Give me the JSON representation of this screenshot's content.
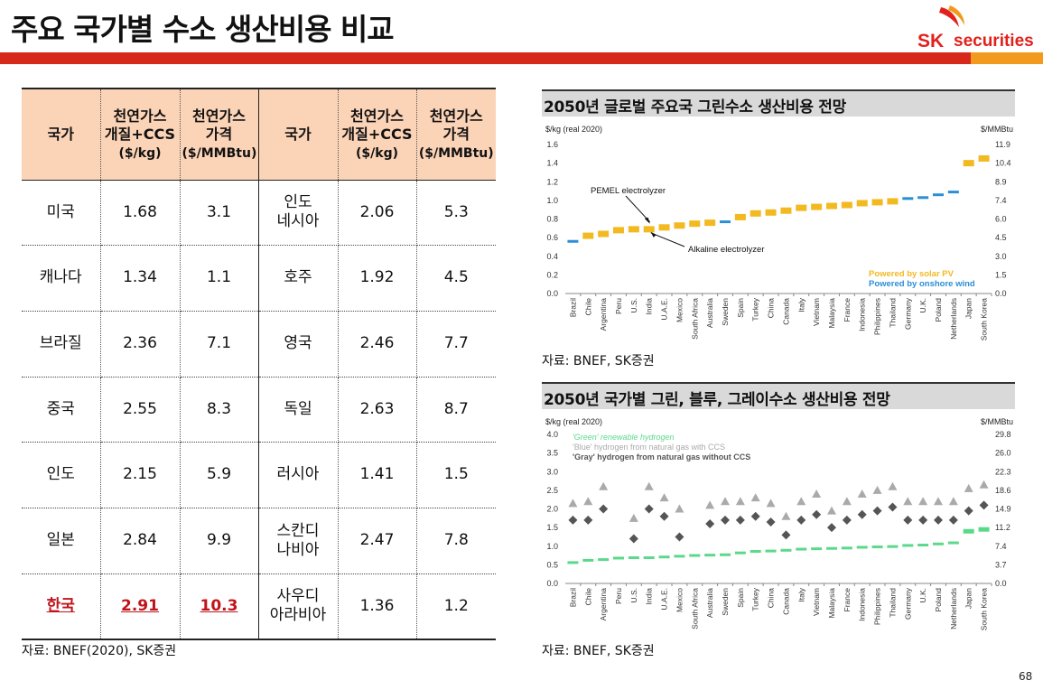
{
  "header": {
    "title": "주요 국가별 수소 생산비용 비교",
    "logo_sk": "SK",
    "logo_securities": "securities",
    "colors": {
      "red": "#d7281c",
      "orange": "#f29a1e",
      "table_header": "#fbd3b7",
      "highlight": "#c0141b"
    }
  },
  "table": {
    "headers": {
      "country": "국가",
      "smr_line1": "천연가스",
      "smr_line2": "개질+CCS",
      "smr_unit": "($/kg)",
      "gas_line1": "천연가스",
      "gas_line2": "가격",
      "gas_unit": "($/MMBtu)"
    },
    "rows": [
      {
        "left": {
          "country": "미국",
          "smr": "1.68",
          "gas": "3.1"
        },
        "right": {
          "country": "인도\n네시아",
          "smr": "2.06",
          "gas": "5.3"
        }
      },
      {
        "left": {
          "country": "캐나다",
          "smr": "1.34",
          "gas": "1.1"
        },
        "right": {
          "country": "호주",
          "smr": "1.92",
          "gas": "4.5"
        }
      },
      {
        "left": {
          "country": "브라질",
          "smr": "2.36",
          "gas": "7.1"
        },
        "right": {
          "country": "영국",
          "smr": "2.46",
          "gas": "7.7"
        }
      },
      {
        "left": {
          "country": "중국",
          "smr": "2.55",
          "gas": "8.3"
        },
        "right": {
          "country": "독일",
          "smr": "2.63",
          "gas": "8.7"
        }
      },
      {
        "left": {
          "country": "인도",
          "smr": "2.15",
          "gas": "5.9"
        },
        "right": {
          "country": "러시아",
          "smr": "1.41",
          "gas": "1.5"
        }
      },
      {
        "left": {
          "country": "일본",
          "smr": "2.84",
          "gas": "9.9"
        },
        "right": {
          "country": "스칸디\n나비아",
          "smr": "2.47",
          "gas": "7.8"
        }
      },
      {
        "left": {
          "country": "한국",
          "smr": "2.91",
          "gas": "10.3",
          "highlight": true
        },
        "right": {
          "country": "사우디\n아라비아",
          "smr": "1.36",
          "gas": "1.2"
        }
      }
    ],
    "source": "자료: BNEF(2020), SK증권"
  },
  "chart_data": [
    {
      "type": "scatter",
      "title": "2050년 글로벌 주요국 그린수소 생산비용 전망",
      "ylabel": "$/kg (real 2020)",
      "y2label": "$/MMBtu",
      "ylim": [
        0,
        1.6
      ],
      "yticks": [
        "0.0",
        "0.2",
        "0.4",
        "0.6",
        "0.8",
        "1.0",
        "1.2",
        "1.4",
        "1.6"
      ],
      "y2ticks": [
        "0.0",
        "1.5",
        "3.0",
        "4.5",
        "6.0",
        "7.4",
        "8.9",
        "10.4",
        "11.9"
      ],
      "categories": [
        "Brazil",
        "Chile",
        "Argentina",
        "Peru",
        "U.S.",
        "India",
        "U.A.E.",
        "Mexico",
        "South Africa",
        "Australia",
        "Sweden",
        "Spain",
        "Turkey",
        "China",
        "Canada",
        "Italy",
        "Vietnam",
        "Malaysia",
        "France",
        "Indonesia",
        "Philippines",
        "Thailand",
        "Germany",
        "U.K.",
        "Poland",
        "Netherlands",
        "Japan",
        "South Korea"
      ],
      "values": [
        0.56,
        0.62,
        0.64,
        0.68,
        0.69,
        0.69,
        0.71,
        0.73,
        0.75,
        0.76,
        0.77,
        0.82,
        0.86,
        0.87,
        0.89,
        0.92,
        0.93,
        0.94,
        0.95,
        0.97,
        0.98,
        0.99,
        1.02,
        1.03,
        1.06,
        1.09,
        1.4,
        1.45
      ],
      "source_type": [
        "wind",
        "solar",
        "solar",
        "solar",
        "solar",
        "solar",
        "solar",
        "solar",
        "solar",
        "solar",
        "wind",
        "solar",
        "solar",
        "solar",
        "solar",
        "solar",
        "solar",
        "solar",
        "solar",
        "solar",
        "solar",
        "solar",
        "wind",
        "wind",
        "wind",
        "wind",
        "solar",
        "solar"
      ],
      "legend": [
        {
          "name": "Powered by solar PV",
          "color": "#f3b921"
        },
        {
          "name": "Powered by onshore wind",
          "color": "#2a8fd6"
        }
      ],
      "legend_position": "bottom-right",
      "annotations": [
        {
          "text": "PEMEL electrolyzer",
          "at": "India"
        },
        {
          "text": "Alkaline electrolyzer",
          "at": "India"
        }
      ],
      "source": "자료: BNEF, SK증권"
    },
    {
      "type": "scatter",
      "title": "2050년 국가별 그린, 블루, 그레이수소 생산비용 전망",
      "ylabel": "$/kg (real 2020)",
      "y2label": "$/MMBtu",
      "ylim": [
        0,
        4.0
      ],
      "yticks": [
        "0.0",
        "0.5",
        "1.0",
        "1.5",
        "2.0",
        "2.5",
        "3.0",
        "3.5",
        "4.0"
      ],
      "y2ticks": [
        "0.0",
        "3.7",
        "7.4",
        "11.2",
        "14.9",
        "18.6",
        "22.3",
        "26.0",
        "29.8"
      ],
      "categories": [
        "Brazil",
        "Chile",
        "Argentina",
        "Peru",
        "U.S.",
        "India",
        "U.A.E.",
        "Mexico",
        "South Africa",
        "Australia",
        "Sweden",
        "Spain",
        "Turkey",
        "China",
        "Canada",
        "Italy",
        "Vietnam",
        "Malaysia",
        "France",
        "Indonesia",
        "Philippines",
        "Thailand",
        "Germany",
        "U.K.",
        "Poland",
        "Netherlands",
        "Japan",
        "South Korea"
      ],
      "series": [
        {
          "name": "'Green' renewable hydrogen",
          "color": "#5bd98a",
          "values": [
            0.56,
            0.62,
            0.64,
            0.68,
            0.69,
            0.69,
            0.71,
            0.73,
            0.75,
            0.76,
            0.77,
            0.82,
            0.86,
            0.87,
            0.89,
            0.92,
            0.93,
            0.94,
            0.95,
            0.97,
            0.98,
            0.99,
            1.02,
            1.03,
            1.06,
            1.09,
            1.4,
            1.45
          ]
        },
        {
          "name": "'Blue' hydrogen from natural gas with CCS",
          "color": "#aaaaaa",
          "values": [
            2.15,
            2.2,
            2.6,
            null,
            1.75,
            2.6,
            2.3,
            2.0,
            null,
            2.1,
            2.2,
            2.2,
            2.3,
            2.15,
            1.8,
            2.2,
            2.4,
            1.95,
            2.2,
            2.4,
            2.5,
            2.6,
            2.2,
            2.2,
            2.2,
            2.2,
            2.55,
            2.65
          ]
        },
        {
          "name": "'Gray' hydrogen from natural gas without CCS",
          "color": "#555555",
          "values": [
            1.7,
            1.7,
            2.0,
            null,
            1.2,
            2.0,
            1.8,
            1.25,
            null,
            1.6,
            1.7,
            1.7,
            1.8,
            1.65,
            1.3,
            1.7,
            1.85,
            1.5,
            1.7,
            1.85,
            1.95,
            2.05,
            1.7,
            1.7,
            1.7,
            1.7,
            1.95,
            2.1
          ]
        }
      ],
      "legend_position": "top-left",
      "source": "자료: BNEF, SK증권"
    }
  ],
  "page_number": "68"
}
